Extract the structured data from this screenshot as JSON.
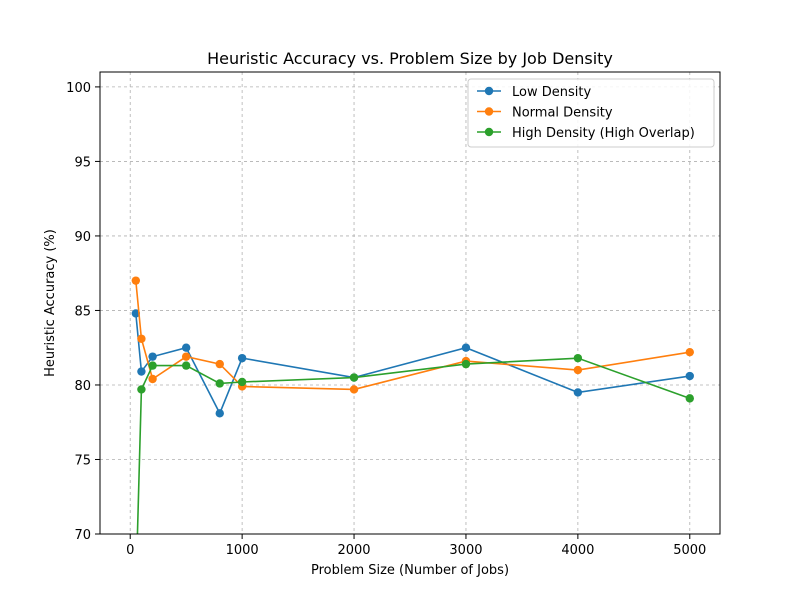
{
  "chart_data": {
    "type": "line",
    "title": "Heuristic Accuracy vs. Problem Size by Job Density",
    "xlabel": "Problem Size (Number of Jobs)",
    "ylabel": "Heuristic Accuracy (%)",
    "xlim": [
      -270,
      5270
    ],
    "ylim": [
      70,
      101
    ],
    "xticks": [
      0,
      1000,
      2000,
      3000,
      4000,
      5000
    ],
    "yticks": [
      70,
      75,
      80,
      85,
      90,
      95,
      100
    ],
    "grid": true,
    "legend_position": "top-right",
    "series": [
      {
        "name": "Low Density",
        "color": "#1f77b4",
        "x": [
          50,
          100,
          200,
          500,
          800,
          1000,
          2000,
          3000,
          4000,
          5000
        ],
        "y": [
          84.8,
          80.9,
          81.9,
          82.5,
          78.1,
          81.8,
          80.5,
          82.5,
          79.5,
          80.6
        ]
      },
      {
        "name": "Normal Density",
        "color": "#ff7f0e",
        "x": [
          50,
          100,
          200,
          500,
          800,
          1000,
          2000,
          3000,
          4000,
          5000
        ],
        "y": [
          87.0,
          83.1,
          80.4,
          81.9,
          81.4,
          79.9,
          79.7,
          81.6,
          81.0,
          82.2
        ]
      },
      {
        "name": "High Density (High Overlap)",
        "color": "#2ca02c",
        "x": [
          50,
          100,
          200,
          500,
          800,
          1000,
          2000,
          3000,
          4000,
          5000
        ],
        "y": [
          66.0,
          79.7,
          81.3,
          81.3,
          80.1,
          80.2,
          80.5,
          81.4,
          81.8,
          79.1
        ]
      }
    ]
  }
}
